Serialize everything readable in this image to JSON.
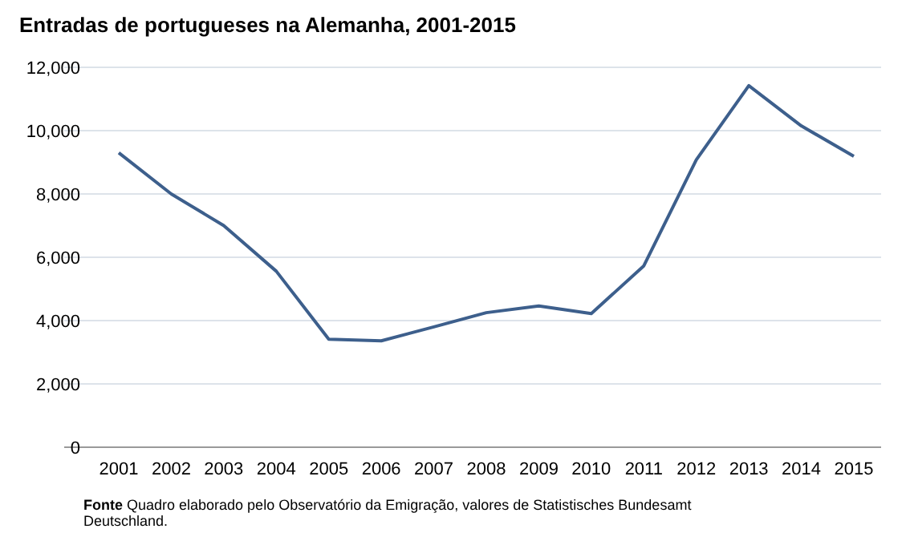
{
  "chart_data": {
    "type": "line",
    "title": "Entradas de portugueses na Alemanha, 2001-2015",
    "categories": [
      "2001",
      "2002",
      "2003",
      "2004",
      "2005",
      "2006",
      "2007",
      "2008",
      "2009",
      "2010",
      "2011",
      "2012",
      "2013",
      "2014",
      "2015"
    ],
    "series": [
      {
        "color": "#3d5f8c",
        "values": [
          9300,
          8000,
          7000,
          5560,
          3410,
          3360,
          3800,
          4250,
          4460,
          4220,
          5730,
          9080,
          11420,
          10150,
          9190
        ]
      }
    ],
    "ylim": [
      0,
      12000
    ],
    "yticks": [
      {
        "value": 0,
        "label": "0"
      },
      {
        "value": 2000,
        "label": "2,000"
      },
      {
        "value": 4000,
        "label": "4,000"
      },
      {
        "value": 6000,
        "label": "6,000"
      },
      {
        "value": 8000,
        "label": "8,000"
      },
      {
        "value": 10000,
        "label": "10,000"
      },
      {
        "value": 12000,
        "label": "12,000"
      }
    ],
    "grid": "y",
    "marker": "none",
    "line_style": "solid",
    "annotations": [
      "Fonte Quadro elaborado pelo Observatório da Emigração, valores de Statistisches Bundesamt Deutschland."
    ]
  }
}
